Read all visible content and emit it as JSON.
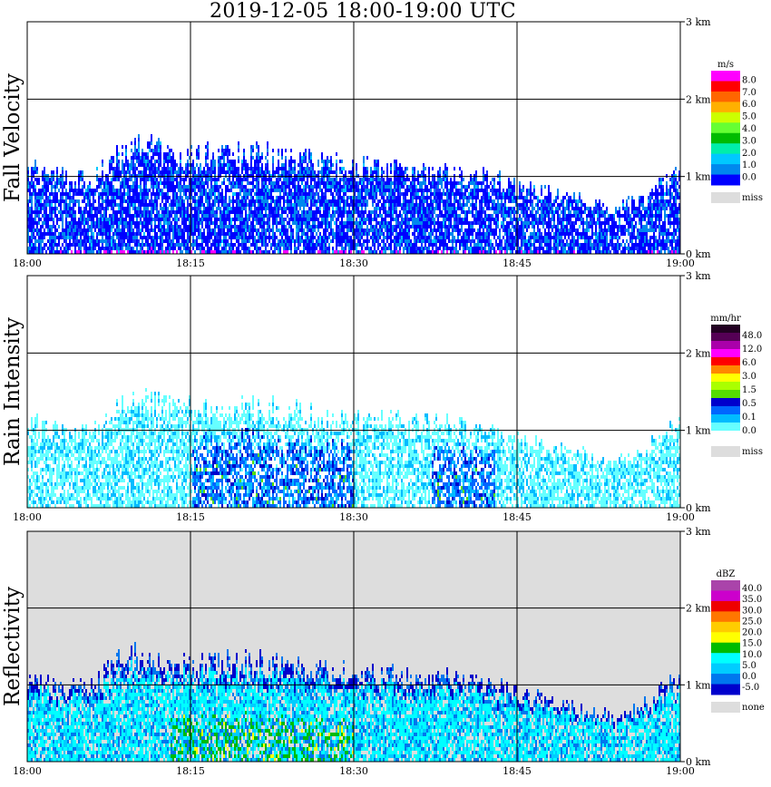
{
  "title": "2019-12-05   18:00-19:00 UTC",
  "chart_data": [
    {
      "type": "heatmap",
      "ylabel": "Fall Velocity",
      "xticks": [
        "18:00",
        "18:15",
        "18:30",
        "18:45",
        "19:00"
      ],
      "yticks": [
        "0 km",
        "1 km",
        "2 km",
        "3 km"
      ],
      "xlim_minutes": [
        0,
        60
      ],
      "ylim_km": [
        0,
        3.0
      ],
      "grid": true,
      "background": "white",
      "colorbar": {
        "unit": "m/s",
        "labels": [
          "8.0",
          "7.0",
          "6.0",
          "5.0",
          "4.0",
          "3.0",
          "2.0",
          "1.0",
          "0.0"
        ],
        "colors": [
          "#ff00ff",
          "#ff0000",
          "#ff6600",
          "#ffb000",
          "#ccff00",
          "#66ff33",
          "#00bb00",
          "#00eeaa",
          "#00c8ff",
          "#0088ee",
          "#0000ff"
        ],
        "missing_label": "miss",
        "missing_color": "#dddddd"
      },
      "echo_top_km": [
        [
          0,
          1.1
        ],
        [
          3,
          1.0
        ],
        [
          6,
          1.0
        ],
        [
          9,
          1.4
        ],
        [
          12,
          1.35
        ],
        [
          15,
          1.3
        ],
        [
          18,
          1.3
        ],
        [
          21,
          1.3
        ],
        [
          24,
          1.25
        ],
        [
          27,
          1.2
        ],
        [
          30,
          1.15
        ],
        [
          33,
          1.15
        ],
        [
          36,
          1.1
        ],
        [
          39,
          1.1
        ],
        [
          42,
          1.0
        ],
        [
          45,
          0.9
        ],
        [
          48,
          0.8
        ],
        [
          51,
          0.7
        ],
        [
          54,
          0.6
        ],
        [
          57,
          0.8
        ],
        [
          60,
          1.1
        ]
      ]
    },
    {
      "type": "heatmap",
      "ylabel": "Rain Intensity",
      "xticks": [
        "18:00",
        "18:15",
        "18:30",
        "18:45",
        "19:00"
      ],
      "yticks": [
        "0 km",
        "1 km",
        "2 km",
        "3 km"
      ],
      "xlim_minutes": [
        0,
        60
      ],
      "ylim_km": [
        0,
        3.0
      ],
      "grid": true,
      "background": "white",
      "colorbar": {
        "unit": "mm/hr",
        "labels": [
          "48.0",
          "12.0",
          "6.0",
          "3.0",
          "1.5",
          "0.5",
          "0.1",
          "0.0"
        ],
        "colors": [
          "#220022",
          "#550055",
          "#aa00aa",
          "#ff00ff",
          "#ff0000",
          "#ff8800",
          "#ffff00",
          "#aaff00",
          "#55dd00",
          "#0000cc",
          "#0066ff",
          "#00bbff",
          "#66ffff",
          "#ffffff"
        ],
        "missing_label": "miss",
        "missing_color": "#dddddd"
      },
      "echo_top_km": [
        [
          0,
          1.1
        ],
        [
          3,
          1.0
        ],
        [
          6,
          1.0
        ],
        [
          9,
          1.4
        ],
        [
          12,
          1.35
        ],
        [
          15,
          1.3
        ],
        [
          18,
          1.3
        ],
        [
          21,
          1.3
        ],
        [
          24,
          1.25
        ],
        [
          27,
          1.2
        ],
        [
          30,
          1.15
        ],
        [
          33,
          1.15
        ],
        [
          36,
          1.1
        ],
        [
          39,
          1.1
        ],
        [
          42,
          1.0
        ],
        [
          45,
          0.9
        ],
        [
          48,
          0.8
        ],
        [
          51,
          0.7
        ],
        [
          54,
          0.6
        ],
        [
          57,
          0.8
        ],
        [
          60,
          1.1
        ]
      ]
    },
    {
      "type": "heatmap",
      "ylabel": "Reflectivity",
      "xticks": [
        "18:00",
        "18:15",
        "18:30",
        "18:45",
        "19:00"
      ],
      "yticks": [
        "0 km",
        "1 km",
        "2 km",
        "3 km"
      ],
      "xlim_minutes": [
        0,
        60
      ],
      "ylim_km": [
        0,
        3.0
      ],
      "grid": true,
      "background": "light gray (none)",
      "colorbar": {
        "unit": "dBZ",
        "labels": [
          "40.0",
          "35.0",
          "30.0",
          "25.0",
          "20.0",
          "15.0",
          "10.0",
          "5.0",
          "0.0",
          "-5.0"
        ],
        "colors": [
          "#aa44aa",
          "#cc00cc",
          "#ee0000",
          "#ff7700",
          "#ffcc00",
          "#ffff00",
          "#00bb00",
          "#00ffff",
          "#00ccff",
          "#0077ee",
          "#0000cc"
        ],
        "missing_label": "none",
        "missing_color": "#dddddd"
      },
      "echo_top_km": [
        [
          0,
          1.1
        ],
        [
          3,
          1.0
        ],
        [
          6,
          1.0
        ],
        [
          9,
          1.4
        ],
        [
          12,
          1.35
        ],
        [
          15,
          1.3
        ],
        [
          18,
          1.3
        ],
        [
          21,
          1.3
        ],
        [
          24,
          1.25
        ],
        [
          27,
          1.2
        ],
        [
          30,
          1.15
        ],
        [
          33,
          1.15
        ],
        [
          36,
          1.1
        ],
        [
          39,
          1.1
        ],
        [
          42,
          1.0
        ],
        [
          45,
          0.9
        ],
        [
          48,
          0.8
        ],
        [
          51,
          0.7
        ],
        [
          54,
          0.6
        ],
        [
          57,
          0.8
        ],
        [
          60,
          1.1
        ]
      ]
    }
  ]
}
